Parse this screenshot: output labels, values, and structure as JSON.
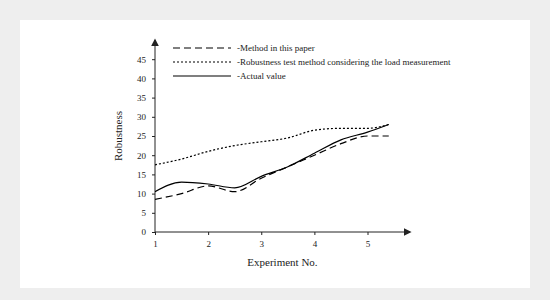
{
  "chart_data": {
    "type": "line",
    "x_label": "Experiment No.",
    "y_label": "Robustness",
    "x": [
      1,
      1.5,
      2,
      2.5,
      3,
      3.5,
      4,
      4.5,
      5,
      5.4
    ],
    "series": [
      {
        "name": "-Method in this paper",
        "color": "#000000",
        "line_style": "dashed",
        "values": [
          8.5,
          10,
          12,
          10.5,
          14,
          17,
          20,
          23,
          25,
          25
        ]
      },
      {
        "name": "-Robustness test method considering the load measurement",
        "color": "#000000",
        "line_style": "dotted",
        "values": [
          17.5,
          19,
          21,
          22.5,
          23.5,
          24.5,
          26.5,
          27,
          27,
          28
        ]
      },
      {
        "name": "-Actual value",
        "color": "#000000",
        "line_style": "solid",
        "values": [
          10.5,
          13,
          12.5,
          11.5,
          14.5,
          17,
          20.5,
          24,
          26,
          28
        ]
      }
    ],
    "xlim": [
      1,
      5.8
    ],
    "ylim": [
      0,
      50
    ],
    "xticks": [
      1,
      2,
      3,
      4,
      5
    ],
    "yticks": [
      0,
      5,
      10,
      15,
      20,
      25,
      30,
      35,
      40,
      45
    ],
    "legend": "upper left",
    "grid": false
  }
}
